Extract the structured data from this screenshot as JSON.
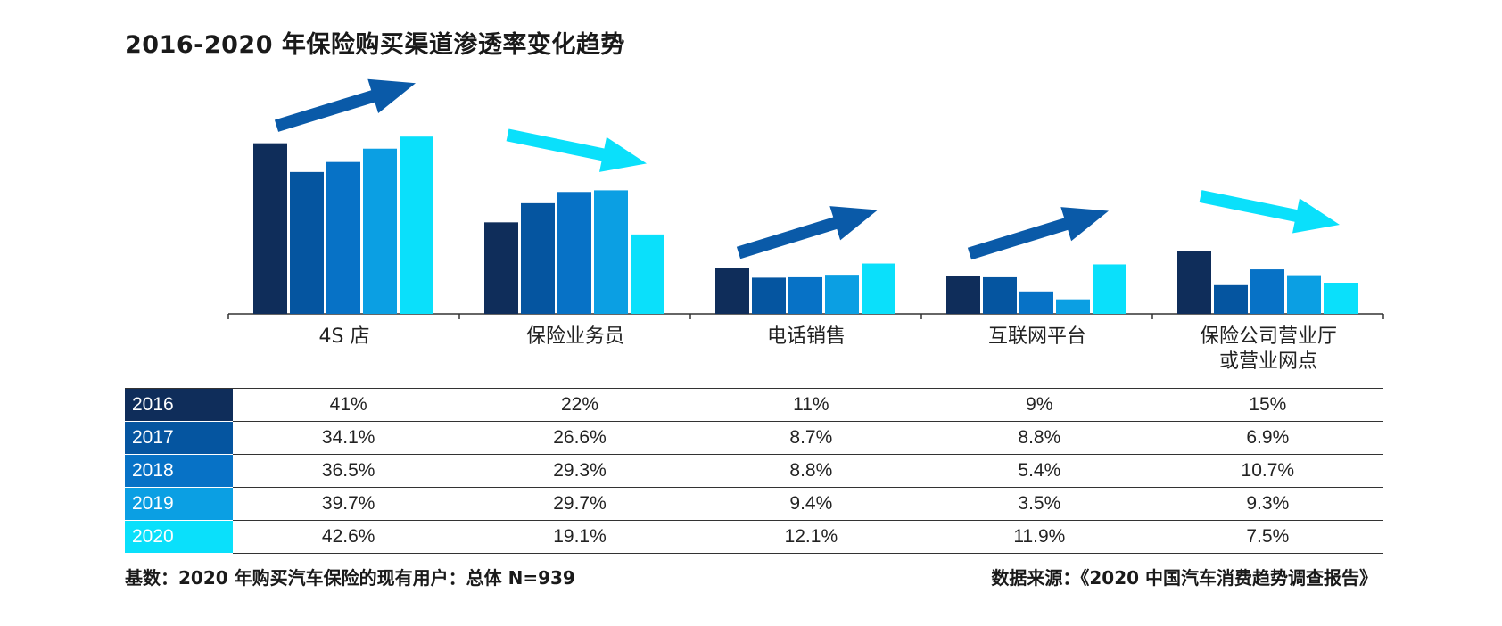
{
  "title": "2016-2020 年保险购买渠道渗透率变化趋势",
  "colors": {
    "2016": "#0f2d5a",
    "2017": "#0555a0",
    "2018": "#0772c6",
    "2019": "#0b9fe3",
    "2020": "#0ae0fb",
    "arrow_up": "#0a5aa8",
    "arrow_down": "#0ae0fb"
  },
  "chart_data": {
    "type": "bar",
    "title": "2016-2020 年保险购买渠道渗透率变化趋势",
    "categories": [
      "4S 店",
      "保险业务员",
      "电话销售",
      "互联网平台",
      "保险公司营业厅\n或营业网点"
    ],
    "series": [
      {
        "name": "2016",
        "values": [
          41,
          22,
          11,
          9,
          15
        ]
      },
      {
        "name": "2017",
        "values": [
          34.1,
          26.6,
          8.7,
          8.8,
          6.9
        ]
      },
      {
        "name": "2018",
        "values": [
          36.5,
          29.3,
          8.8,
          5.4,
          10.7
        ]
      },
      {
        "name": "2019",
        "values": [
          39.7,
          29.7,
          9.4,
          3.5,
          9.3
        ]
      },
      {
        "name": "2020",
        "values": [
          42.6,
          19.1,
          12.1,
          11.9,
          7.5
        ]
      }
    ],
    "trend_arrows": [
      "up",
      "down",
      "up",
      "up",
      "down"
    ],
    "ylim": [
      0,
      45
    ],
    "grid": false,
    "legend": "table-below"
  },
  "table": {
    "rows": [
      {
        "year": "2016",
        "cells": [
          "41%",
          "22%",
          "11%",
          "9%",
          "15%"
        ]
      },
      {
        "year": "2017",
        "cells": [
          "34.1%",
          "26.6%",
          "8.7%",
          "8.8%",
          "6.9%"
        ]
      },
      {
        "year": "2018",
        "cells": [
          "36.5%",
          "29.3%",
          "8.8%",
          "5.4%",
          "10.7%"
        ]
      },
      {
        "year": "2019",
        "cells": [
          "39.7%",
          "29.7%",
          "9.4%",
          "3.5%",
          "9.3%"
        ]
      },
      {
        "year": "2020",
        "cells": [
          "42.6%",
          "19.1%",
          "12.1%",
          "11.9%",
          "7.5%"
        ]
      }
    ]
  },
  "footer": {
    "base_note": "基数：2020 年购买汽车保险的现有用户：总体 N=939",
    "source": "数据来源：《2020 中国汽车消费趋势调查报告》"
  }
}
